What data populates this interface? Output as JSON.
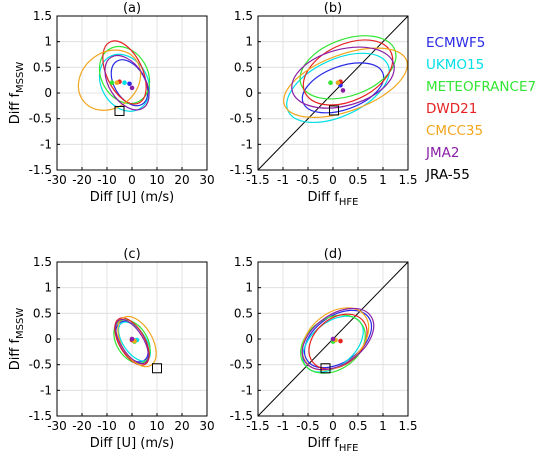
{
  "legend": {
    "placement": "right",
    "entries": [
      {
        "label": "ECMWF5",
        "color": "#2a2ae6"
      },
      {
        "label": "UKMO15",
        "color": "#00e0e6"
      },
      {
        "label": "METEOFRANCE7",
        "color": "#33e633"
      },
      {
        "label": "DWD21",
        "color": "#e62222"
      },
      {
        "label": "CMCC35",
        "color": "#f2a61e"
      },
      {
        "label": "JMA2",
        "color": "#8a1fa6"
      },
      {
        "label": "JRA-55",
        "color": "#000000"
      }
    ]
  },
  "chart_data": [
    {
      "type": "scatter",
      "title": "(a)",
      "xlabel": "Diff [U] (m/s)",
      "ylabel_main": "Diff f",
      "ylabel_sub": "MSSW",
      "xlim": [
        -30,
        30
      ],
      "ylim": [
        -1.5,
        1.5
      ],
      "xticks": [
        "-30",
        "-20",
        "-10",
        "0",
        "10",
        "20",
        "30"
      ],
      "yticks": [
        "1.5",
        "1",
        "0.5",
        "0",
        "-0.5",
        "-1",
        "-1.5"
      ],
      "grid": true,
      "diagonal": false,
      "square_marker": [
        -5,
        -0.35
      ],
      "series": [
        {
          "name": "ECMWF5",
          "point": [
            -1,
            0.18
          ],
          "ellipse": {
            "cx": -1,
            "cy": 0.2,
            "rx": 10.0,
            "ry": 0.3,
            "angle": 120
          }
        },
        {
          "name": "UKMO15",
          "point": [
            -3,
            0.2
          ],
          "ellipse": {
            "cx": -3,
            "cy": 0.2,
            "rx": 12.0,
            "ry": 0.45,
            "angle": 120
          }
        },
        {
          "name": "METEOFRANCE7",
          "point": [
            -8,
            0.2
          ],
          "ellipse": {
            "cx": -3,
            "cy": 0.35,
            "rx": 12.0,
            "ry": 0.45,
            "angle": 120
          }
        },
        {
          "name": "DWD21",
          "point": [
            -5,
            0.22
          ],
          "ellipse": {
            "cx": -3,
            "cy": 0.4,
            "rx": 13.5,
            "ry": 0.35,
            "angle": 115
          }
        },
        {
          "name": "CMCC35",
          "point": [
            -6,
            0.2
          ],
          "ellipse": {
            "cx": -9,
            "cy": 0.25,
            "rx": 11.0,
            "ry": 0.65,
            "angle": 130
          }
        },
        {
          "name": "JMA2",
          "point": [
            0,
            0.1
          ],
          "ellipse": {
            "cx": -2,
            "cy": 0.2,
            "rx": 12.0,
            "ry": 0.35,
            "angle": 122
          }
        }
      ]
    },
    {
      "type": "scatter",
      "title": "(b)",
      "xlabel_main": "Diff f",
      "xlabel_sub": "HFE",
      "xlim": [
        -1.5,
        1.5
      ],
      "ylim": [
        -1.5,
        1.5
      ],
      "xticks": [
        "-1.5",
        "-1",
        "-0.5",
        "0",
        "0.5",
        "1",
        "1.5"
      ],
      "yticks": [
        "1.5",
        "1",
        "0.5",
        "0",
        "-0.5",
        "-1",
        "-1.5"
      ],
      "grid": true,
      "diagonal": true,
      "square_marker": [
        0.02,
        -0.34
      ],
      "series": [
        {
          "name": "ECMWF5",
          "point": [
            0.15,
            0.15
          ],
          "ellipse": {
            "cx": 0.2,
            "cy": 0.1,
            "rx": 0.85,
            "ry": 0.42,
            "angle": 20
          }
        },
        {
          "name": "UKMO15",
          "point": [
            0.1,
            0.2
          ],
          "ellipse": {
            "cx": 0.1,
            "cy": 0.1,
            "rx": 1.1,
            "ry": 0.55,
            "angle": 25
          }
        },
        {
          "name": "METEOFRANCE7",
          "point": [
            -0.05,
            0.2
          ],
          "ellipse": {
            "cx": 0.3,
            "cy": 0.5,
            "rx": 1.0,
            "ry": 0.55,
            "angle": 20
          }
        },
        {
          "name": "DWD21",
          "point": [
            0.15,
            0.22
          ],
          "ellipse": {
            "cx": 0.3,
            "cy": 0.4,
            "rx": 0.95,
            "ry": 0.55,
            "angle": 25
          }
        },
        {
          "name": "CMCC35",
          "point": [
            0.1,
            0.2
          ],
          "ellipse": {
            "cx": 0.25,
            "cy": 0.2,
            "rx": 1.3,
            "ry": 0.55,
            "angle": 20
          }
        },
        {
          "name": "JMA2",
          "point": [
            0.2,
            0.05
          ],
          "ellipse": {
            "cx": 0.2,
            "cy": 0.3,
            "rx": 1.05,
            "ry": 0.55,
            "angle": 15
          }
        }
      ]
    },
    {
      "type": "scatter",
      "title": "(c)",
      "xlabel": "Diff [U] (m/s)",
      "ylabel_main": "Diff f",
      "ylabel_sub": "MSSW",
      "xlim": [
        -30,
        30
      ],
      "ylim": [
        -1.5,
        1.5
      ],
      "xticks": [
        "-30",
        "-20",
        "-10",
        "0",
        "10",
        "20",
        "30"
      ],
      "yticks": [
        "1.5",
        "1",
        "0.5",
        "0",
        "-0.5",
        "-1",
        "-1.5"
      ],
      "grid": true,
      "diagonal": false,
      "square_marker": [
        10,
        -0.57
      ],
      "series": [
        {
          "name": "ECMWF5",
          "point": [
            1,
            -0.03
          ],
          "ellipse": {
            "cx": 0,
            "cy": -0.05,
            "rx": 9.0,
            "ry": 0.25,
            "angle": 122
          }
        },
        {
          "name": "UKMO15",
          "point": [
            2,
            -0.02
          ],
          "ellipse": {
            "cx": 1,
            "cy": -0.05,
            "rx": 9.0,
            "ry": 0.22,
            "angle": 125
          }
        },
        {
          "name": "METEOFRANCE7",
          "point": [
            1,
            -0.05
          ],
          "ellipse": {
            "cx": 0,
            "cy": -0.05,
            "rx": 9.5,
            "ry": 0.3,
            "angle": 122
          }
        },
        {
          "name": "DWD21",
          "point": [
            0,
            -0.02
          ],
          "ellipse": {
            "cx": 0,
            "cy": -0.05,
            "rx": 10.5,
            "ry": 0.25,
            "angle": 120
          }
        },
        {
          "name": "CMCC35",
          "point": [
            1,
            -0.04
          ],
          "ellipse": {
            "cx": 2,
            "cy": -0.05,
            "rx": 11.0,
            "ry": 0.3,
            "angle": 120
          }
        },
        {
          "name": "JMA2",
          "point": [
            0,
            0.0
          ],
          "ellipse": {
            "cx": 0,
            "cy": -0.05,
            "rx": 10.0,
            "ry": 0.22,
            "angle": 122
          }
        }
      ]
    },
    {
      "type": "scatter",
      "title": "(d)",
      "xlabel_main": "Diff f",
      "xlabel_sub": "HFE",
      "xlim": [
        -1.5,
        1.5
      ],
      "ylim": [
        -1.5,
        1.5
      ],
      "xticks": [
        "-1.5",
        "-1",
        "-0.5",
        "0",
        "0.5",
        "1",
        "1.5"
      ],
      "yticks": [
        "1.5",
        "1",
        "0.5",
        "0",
        "-0.5",
        "-1",
        "-1.5"
      ],
      "grid": true,
      "diagonal": true,
      "square_marker": [
        -0.15,
        -0.57
      ],
      "series": [
        {
          "name": "ECMWF5",
          "point": [
            0.0,
            -0.03
          ],
          "ellipse": {
            "cx": 0.1,
            "cy": 0.0,
            "rx": 0.75,
            "ry": 0.45,
            "angle": 35
          }
        },
        {
          "name": "UKMO15",
          "point": [
            0.05,
            -0.02
          ],
          "ellipse": {
            "cx": 0.0,
            "cy": -0.1,
            "rx": 0.7,
            "ry": 0.42,
            "angle": 40
          }
        },
        {
          "name": "METEOFRANCE7",
          "point": [
            0.0,
            -0.05
          ],
          "ellipse": {
            "cx": 0.0,
            "cy": -0.1,
            "rx": 0.7,
            "ry": 0.5,
            "angle": 35
          }
        },
        {
          "name": "DWD21",
          "point": [
            0.15,
            -0.04
          ],
          "ellipse": {
            "cx": 0.1,
            "cy": -0.05,
            "rx": 0.65,
            "ry": 0.45,
            "angle": 40
          }
        },
        {
          "name": "CMCC35",
          "point": [
            0.05,
            -0.02
          ],
          "ellipse": {
            "cx": 0.05,
            "cy": 0.0,
            "rx": 0.75,
            "ry": 0.5,
            "angle": 40
          }
        },
        {
          "name": "JMA2",
          "point": [
            0.0,
            0.0
          ],
          "ellipse": {
            "cx": 0.1,
            "cy": 0.0,
            "rx": 0.8,
            "ry": 0.48,
            "angle": 35
          }
        }
      ]
    }
  ]
}
